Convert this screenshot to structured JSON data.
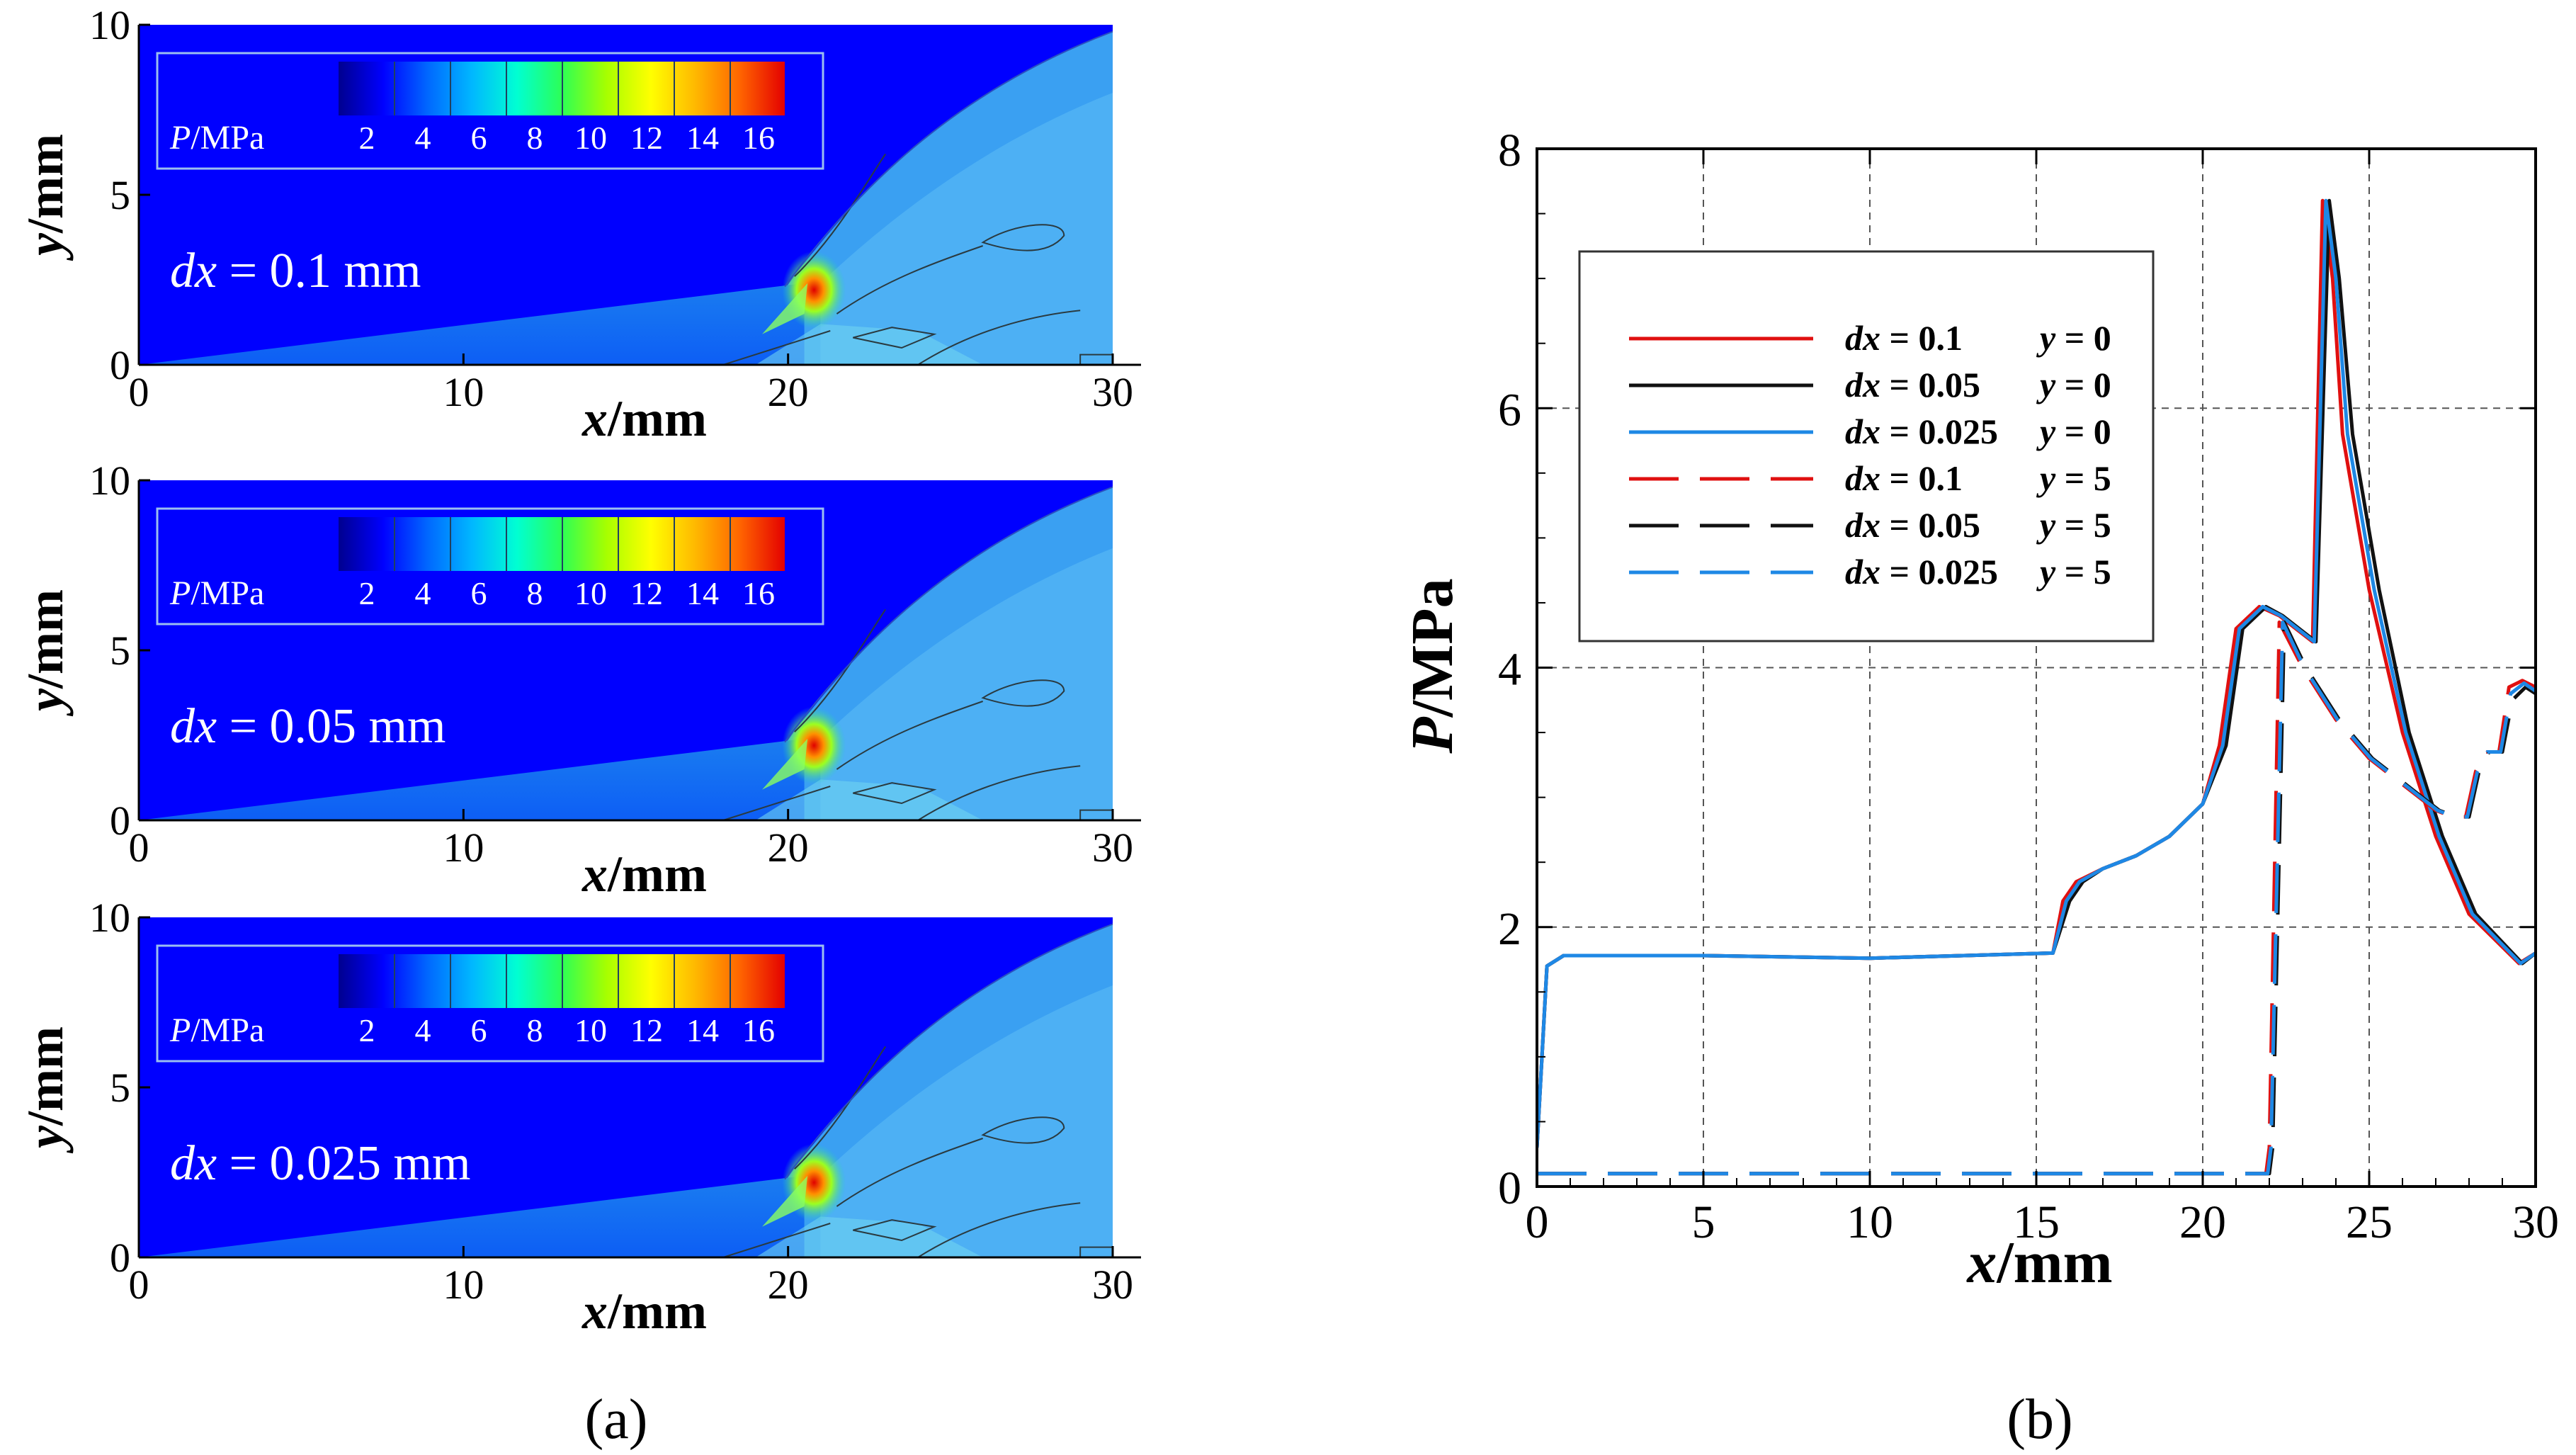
{
  "panel_a": {
    "caption": "(a)",
    "colorbar_var": "P",
    "colorbar_unit": "/MPa",
    "colorbar_ticks": [
      "2",
      "4",
      "6",
      "8",
      "10",
      "12",
      "14",
      "16"
    ],
    "colorbar_colors": [
      "#00008f",
      "#0000ff",
      "#0068ff",
      "#00b8ff",
      "#00ffd2",
      "#2cff56",
      "#a6ff00",
      "#ffff00",
      "#ffb800",
      "#ff6400",
      "#e40000"
    ],
    "x_axis_label": "x",
    "x_axis_unit": "/mm",
    "y_axis_label": "y",
    "y_axis_unit": "/mm",
    "x_ticks": [
      "0",
      "10",
      "20",
      "30"
    ],
    "y_ticks": [
      "0",
      "5",
      "10"
    ],
    "plots": [
      {
        "label_var": "dx",
        "label_text": " = 0.1 mm"
      },
      {
        "label_var": "dx",
        "label_text": " = 0.05 mm"
      },
      {
        "label_var": "dx",
        "label_text": " = 0.025 mm"
      }
    ]
  },
  "panel_b": {
    "caption": "(b)"
  },
  "chart_data": {
    "type": "line",
    "xlabel": "x/mm",
    "ylabel": "P/MPa",
    "xlim": [
      0,
      30
    ],
    "ylim": [
      0,
      8
    ],
    "x_ticks": [
      "0",
      "5",
      "10",
      "15",
      "20",
      "25",
      "30"
    ],
    "y_ticks": [
      "0",
      "2",
      "4",
      "6",
      "8"
    ],
    "grid": true,
    "legend_position": "upper-left",
    "series": [
      {
        "name": "dx = 0.1    y = 0",
        "color": "#e01010",
        "dash": "solid",
        "x": [
          0,
          0.3,
          0.8,
          5,
          10,
          15.5,
          15.8,
          16.2,
          17,
          18,
          19,
          20,
          20.5,
          21,
          21.7,
          22.3,
          22.8,
          23.3,
          23.6,
          23.9,
          24.2,
          25,
          26,
          27,
          28,
          29.5,
          30
        ],
        "y": [
          0.3,
          1.7,
          1.78,
          1.78,
          1.76,
          1.8,
          2.2,
          2.35,
          2.45,
          2.55,
          2.7,
          2.95,
          3.4,
          4.3,
          4.47,
          4.4,
          4.3,
          4.2,
          7.6,
          7.0,
          5.8,
          4.6,
          3.5,
          2.7,
          2.1,
          1.72,
          1.8
        ]
      },
      {
        "name": "dx = 0.05  y = 0",
        "color": "#111111",
        "dash": "solid",
        "x": [
          0,
          0.3,
          0.8,
          5,
          10,
          15.5,
          16,
          16.4,
          17,
          18,
          19,
          20,
          20.7,
          21.2,
          21.9,
          22.4,
          22.9,
          23.4,
          23.8,
          24.1,
          24.5,
          25.3,
          26.2,
          27.2,
          28.2,
          29.6,
          30
        ],
        "y": [
          0.3,
          1.7,
          1.78,
          1.78,
          1.76,
          1.8,
          2.2,
          2.35,
          2.45,
          2.55,
          2.7,
          2.95,
          3.4,
          4.3,
          4.47,
          4.4,
          4.3,
          4.2,
          7.6,
          7.0,
          5.8,
          4.6,
          3.5,
          2.7,
          2.1,
          1.72,
          1.8
        ]
      },
      {
        "name": "dx = 0.025 y = 0",
        "color": "#1e88e5",
        "dash": "solid",
        "x": [
          0,
          0.3,
          0.8,
          5,
          10,
          15.5,
          15.9,
          16.3,
          17,
          18,
          19,
          20,
          20.6,
          21.1,
          21.8,
          22.35,
          22.85,
          23.35,
          23.7,
          24.0,
          24.35,
          25.15,
          26.1,
          27.1,
          28.1,
          29.55,
          30
        ],
        "y": [
          0.3,
          1.7,
          1.78,
          1.78,
          1.76,
          1.8,
          2.2,
          2.35,
          2.45,
          2.55,
          2.7,
          2.95,
          3.4,
          4.3,
          4.47,
          4.4,
          4.3,
          4.2,
          7.6,
          7.0,
          5.8,
          4.6,
          3.5,
          2.7,
          2.1,
          1.72,
          1.8
        ]
      },
      {
        "name": "dx = 0.1    y = 5",
        "color": "#e01010",
        "dash": "dashed",
        "x": [
          0,
          10,
          21.9,
          22.0,
          22.3,
          23,
          24,
          25,
          26,
          27,
          27.5,
          27.9,
          28.2,
          28.5,
          28.9,
          29.2,
          29.6,
          30
        ],
        "y": [
          0.1,
          0.1,
          0.1,
          0.3,
          4.35,
          4.0,
          3.6,
          3.3,
          3.1,
          2.9,
          2.85,
          2.85,
          3.2,
          3.35,
          3.35,
          3.85,
          3.9,
          3.85
        ]
      },
      {
        "name": "dx = 0.05  y = 5",
        "color": "#111111",
        "dash": "dashed",
        "x": [
          0,
          10,
          22.0,
          22.1,
          22.45,
          23.1,
          24.1,
          25.1,
          26.1,
          27.1,
          27.6,
          28.0,
          28.3,
          28.6,
          29.0,
          29.3,
          29.7,
          30
        ],
        "y": [
          0.1,
          0.1,
          0.1,
          0.3,
          4.35,
          4.0,
          3.6,
          3.3,
          3.1,
          2.9,
          2.85,
          2.85,
          3.2,
          3.35,
          3.35,
          3.75,
          3.85,
          3.8
        ]
      },
      {
        "name": "dx = 0.025 y = 5",
        "color": "#1e88e5",
        "dash": "dashed",
        "x": [
          0,
          10,
          21.95,
          22.05,
          22.4,
          23.05,
          24.05,
          25.05,
          26.05,
          27.05,
          27.55,
          27.95,
          28.25,
          28.55,
          28.95,
          29.25,
          29.65,
          30
        ],
        "y": [
          0.1,
          0.1,
          0.1,
          0.3,
          4.35,
          4.0,
          3.6,
          3.3,
          3.1,
          2.9,
          2.85,
          2.85,
          3.2,
          3.35,
          3.35,
          3.8,
          3.88,
          3.82
        ]
      }
    ]
  }
}
